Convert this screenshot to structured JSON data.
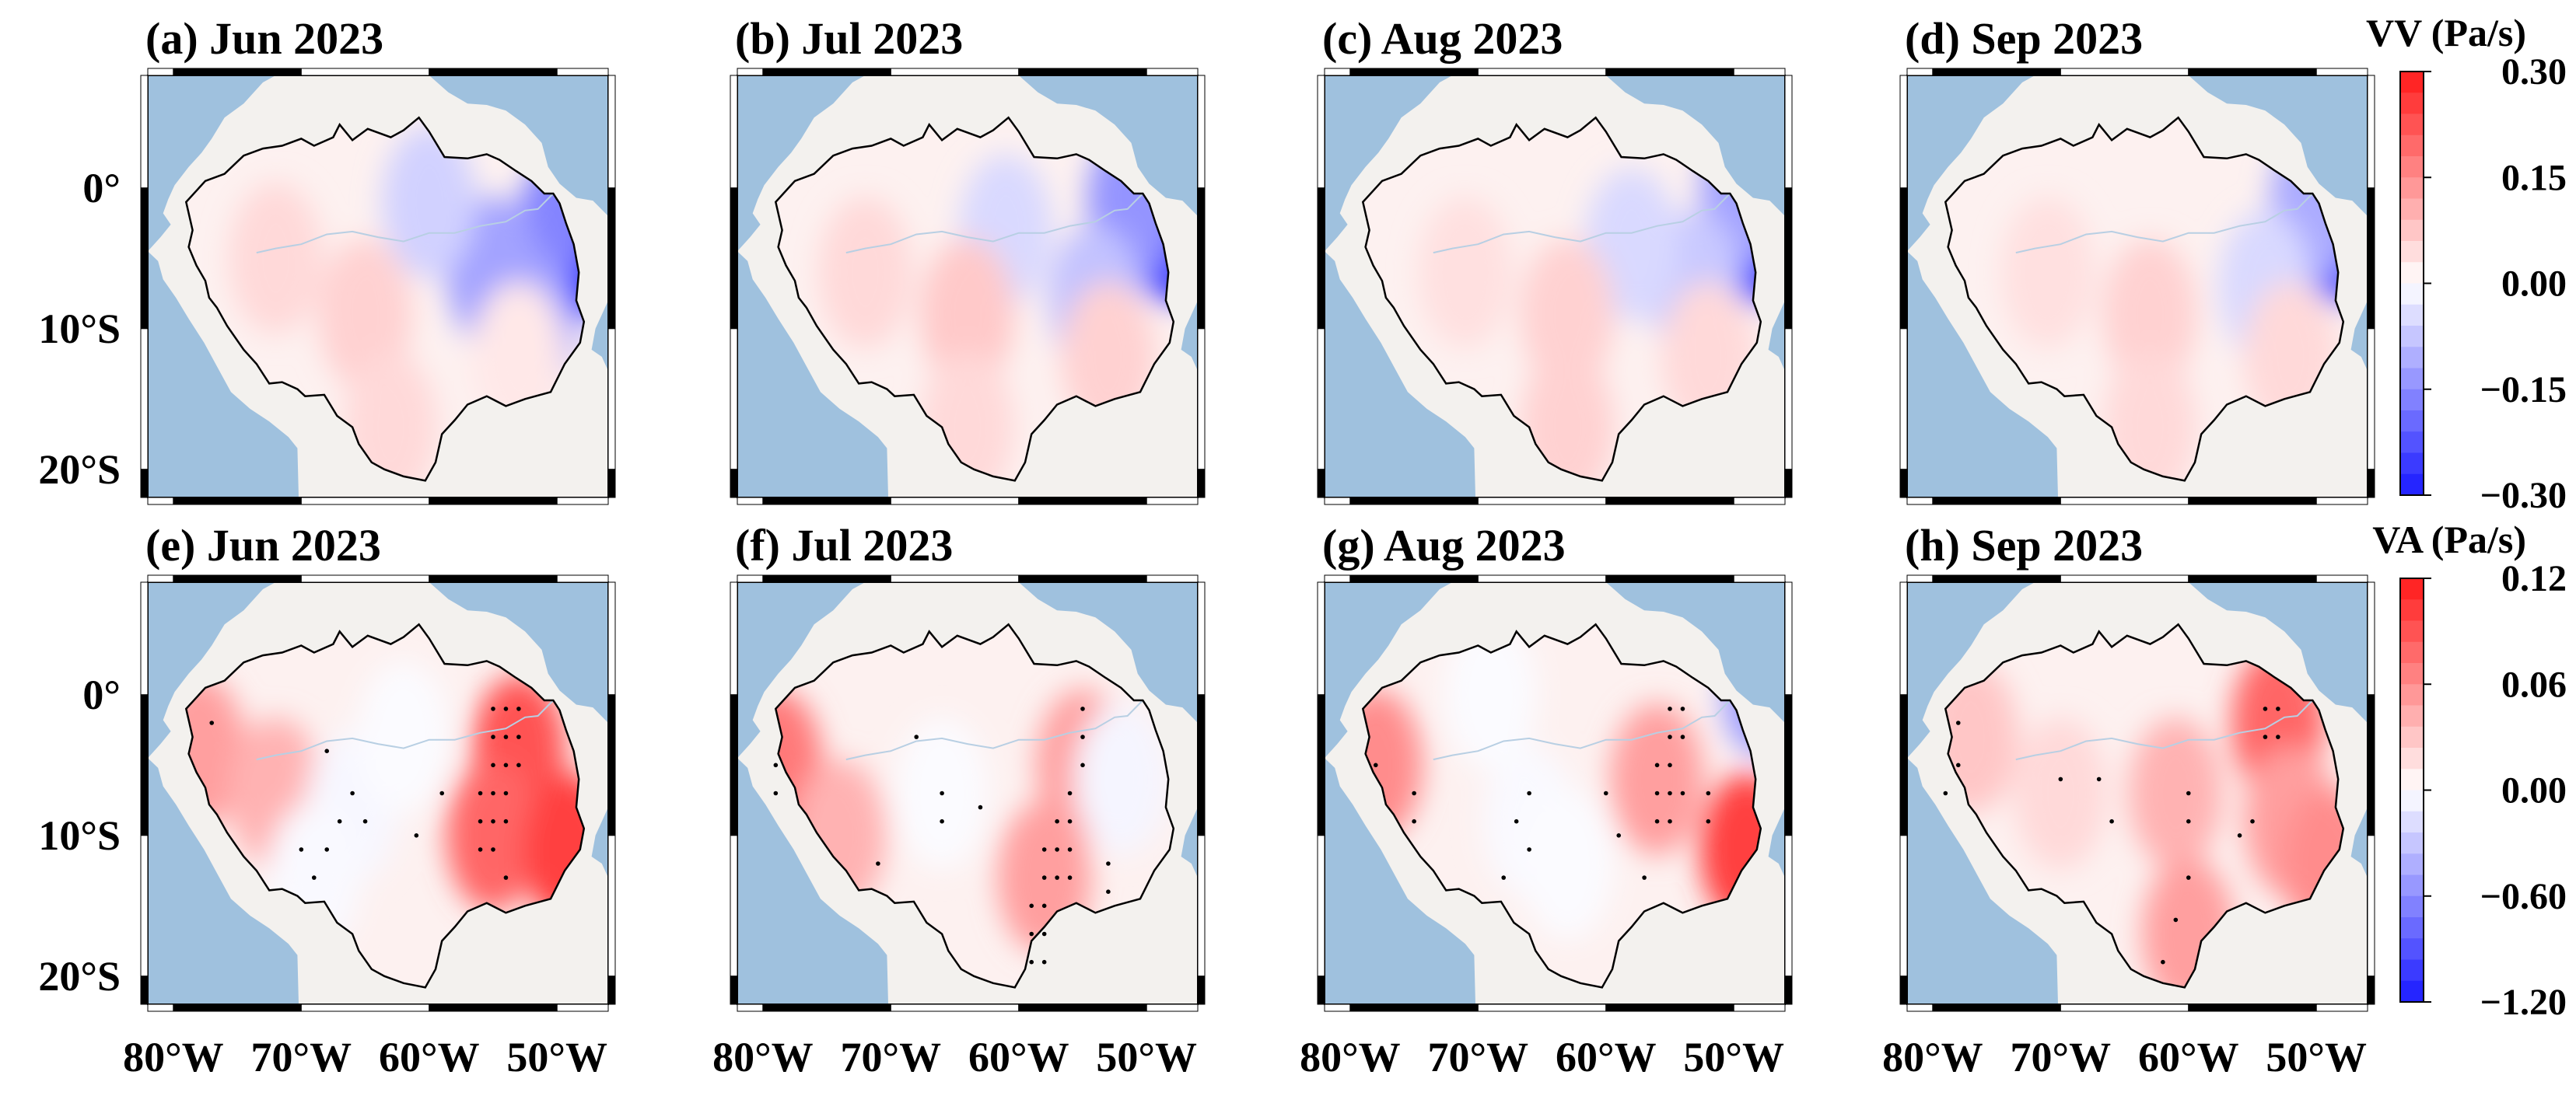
{
  "chart_data": {
    "type": "heatmap",
    "colors": {
      "ocean": "#9fc1de",
      "land": "#f3f1ee",
      "positive": "#ff1a1a",
      "negative": "#1a1aff",
      "neutral": "#ffffff"
    },
    "x_ticks": [
      "80°W",
      "70°W",
      "60°W",
      "50°W"
    ],
    "y_ticks": [
      "0°",
      "10°S",
      "20°S"
    ],
    "lon_range": [
      -82,
      -46
    ],
    "lat_range": [
      8,
      -22
    ],
    "rows": [
      {
        "variable": "VV",
        "colorbar_title": "VV (Pa/s)",
        "colorbar_ticks": [
          "0.30",
          "0.15",
          "0.00",
          "−0.15",
          "−0.30"
        ],
        "panels": [
          {
            "title": "(a) Jun 2023",
            "anomalies": [
              {
                "lon": -48,
                "lat": -5,
                "value": -0.28
              },
              {
                "lon": -50,
                "lat": -2,
                "value": -0.16
              },
              {
                "lon": -55,
                "lat": -6,
                "value": -0.12
              },
              {
                "lon": -52,
                "lat": -10,
                "value": -0.12
              },
              {
                "lon": -60,
                "lat": -1,
                "value": -0.06
              },
              {
                "lon": -72,
                "lat": -5,
                "value": 0.05
              },
              {
                "lon": -65,
                "lat": -9,
                "value": 0.06
              },
              {
                "lon": -63,
                "lat": -17,
                "value": 0.05
              },
              {
                "lon": -53,
                "lat": -12,
                "value": 0.03
              }
            ]
          },
          {
            "title": "(b) Jul 2023",
            "anomalies": [
              {
                "lon": -48,
                "lat": -4,
                "value": -0.24
              },
              {
                "lon": -51,
                "lat": -1,
                "value": -0.14
              },
              {
                "lon": -54,
                "lat": -8,
                "value": -0.08
              },
              {
                "lon": -61,
                "lat": -3,
                "value": -0.05
              },
              {
                "lon": -72,
                "lat": -6,
                "value": 0.05
              },
              {
                "lon": -64,
                "lat": -9,
                "value": 0.07
              },
              {
                "lon": -64,
                "lat": -17,
                "value": 0.05
              },
              {
                "lon": -53,
                "lat": -12,
                "value": 0.06
              }
            ]
          },
          {
            "title": "(c) Aug 2023",
            "anomalies": [
              {
                "lon": -48,
                "lat": -4,
                "value": -0.26
              },
              {
                "lon": -49,
                "lat": 0,
                "value": -0.12
              },
              {
                "lon": -53,
                "lat": -7,
                "value": -0.07
              },
              {
                "lon": -58,
                "lat": -4,
                "value": -0.05
              },
              {
                "lon": -71,
                "lat": -6,
                "value": 0.04
              },
              {
                "lon": -63,
                "lat": -9,
                "value": 0.06
              },
              {
                "lon": -63,
                "lat": -17,
                "value": 0.06
              },
              {
                "lon": -52,
                "lat": -12,
                "value": 0.05
              }
            ]
          },
          {
            "title": "(d) Sep 2023",
            "anomalies": [
              {
                "lon": -48,
                "lat": -4,
                "value": -0.22
              },
              {
                "lon": -50,
                "lat": -1,
                "value": -0.11
              },
              {
                "lon": -54,
                "lat": -7,
                "value": -0.05
              },
              {
                "lon": -71,
                "lat": -6,
                "value": 0.04
              },
              {
                "lon": -63,
                "lat": -9,
                "value": 0.06
              },
              {
                "lon": -63,
                "lat": -17,
                "value": 0.05
              },
              {
                "lon": -52,
                "lat": -12,
                "value": 0.05
              }
            ]
          }
        ]
      },
      {
        "variable": "VA",
        "colorbar_title": "VA (Pa/s)",
        "colorbar_ticks": [
          "0.12",
          "0.06",
          "0.00",
          "−0.60",
          "−1.20"
        ],
        "panels": [
          {
            "title": "(e) Jun 2023",
            "anomalies": [
              {
                "lon": -53,
                "lat": -4,
                "value": 0.09
              },
              {
                "lon": -55,
                "lat": -10,
                "value": 0.08
              },
              {
                "lon": -49,
                "lat": -11,
                "value": 0.1
              },
              {
                "lon": -78,
                "lat": -4,
                "value": 0.05
              },
              {
                "lon": -72,
                "lat": -7,
                "value": 0.04
              },
              {
                "lon": -66,
                "lat": -8,
                "value": -0.04
              },
              {
                "lon": -69,
                "lat": -13,
                "value": -0.03
              },
              {
                "lon": -62,
                "lat": -3,
                "value": -0.02
              }
            ],
            "significance": [
              [
                -55,
                -1
              ],
              [
                -54,
                -1
              ],
              [
                -53,
                -1
              ],
              [
                -55,
                -3
              ],
              [
                -54,
                -3
              ],
              [
                -53,
                -3
              ],
              [
                -55,
                -5
              ],
              [
                -54,
                -5
              ],
              [
                -53,
                -5
              ],
              [
                -56,
                -7
              ],
              [
                -55,
                -7
              ],
              [
                -54,
                -7
              ],
              [
                -56,
                -9
              ],
              [
                -55,
                -9
              ],
              [
                -54,
                -9
              ],
              [
                -56,
                -11
              ],
              [
                -55,
                -11
              ],
              [
                -54,
                -13
              ],
              [
                -66,
                -7
              ],
              [
                -65,
                -9
              ],
              [
                -67,
                -9
              ],
              [
                -68,
                -11
              ],
              [
                -69,
                -13
              ],
              [
                -70,
                -11
              ],
              [
                -61,
                -10
              ],
              [
                -59,
                -7
              ],
              [
                -68,
                -4
              ],
              [
                -77,
                -2
              ]
            ]
          },
          {
            "title": "(f) Jul 2023",
            "anomalies": [
              {
                "lon": -79,
                "lat": -5,
                "value": 0.07
              },
              {
                "lon": -74,
                "lat": -10,
                "value": 0.04
              },
              {
                "lon": -55,
                "lat": -5,
                "value": 0.05
              },
              {
                "lon": -58,
                "lat": -13,
                "value": 0.05
              },
              {
                "lon": -66,
                "lat": -7,
                "value": -0.02
              },
              {
                "lon": -52,
                "lat": -6,
                "value": -0.05
              }
            ],
            "significance": [
              [
                -55,
                -1
              ],
              [
                -55,
                -3
              ],
              [
                -55,
                -5
              ],
              [
                -56,
                -7
              ],
              [
                -57,
                -9
              ],
              [
                -56,
                -9
              ],
              [
                -58,
                -11
              ],
              [
                -57,
                -11
              ],
              [
                -56,
                -11
              ],
              [
                -58,
                -13
              ],
              [
                -57,
                -13
              ],
              [
                -56,
                -13
              ],
              [
                -59,
                -15
              ],
              [
                -58,
                -15
              ],
              [
                -59,
                -17
              ],
              [
                -58,
                -17
              ],
              [
                -59,
                -19
              ],
              [
                -58,
                -19
              ],
              [
                -53,
                -12
              ],
              [
                -53,
                -14
              ],
              [
                -66,
                -7
              ],
              [
                -66,
                -9
              ],
              [
                -71,
                -12
              ],
              [
                -79,
                -5
              ],
              [
                -79,
                -7
              ],
              [
                -68,
                -3
              ],
              [
                -63,
                -8
              ]
            ]
          },
          {
            "title": "(g) Aug 2023",
            "anomalies": [
              {
                "lon": -49,
                "lat": -11,
                "value": 0.1
              },
              {
                "lon": -48,
                "lat": 0,
                "value": -0.5
              },
              {
                "lon": -78,
                "lat": -5,
                "value": 0.06
              },
              {
                "lon": -56,
                "lat": -6,
                "value": 0.05
              },
              {
                "lon": -66,
                "lat": -9,
                "value": -0.03
              },
              {
                "lon": -63,
                "lat": -12,
                "value": -0.02
              },
              {
                "lon": -69,
                "lat": 0,
                "value": -0.02
              }
            ],
            "significance": [
              [
                -55,
                -1
              ],
              [
                -54,
                -1
              ],
              [
                -55,
                -3
              ],
              [
                -54,
                -3
              ],
              [
                -56,
                -5
              ],
              [
                -55,
                -5
              ],
              [
                -56,
                -7
              ],
              [
                -55,
                -7
              ],
              [
                -54,
                -7
              ],
              [
                -56,
                -9
              ],
              [
                -55,
                -9
              ],
              [
                -52,
                -7
              ],
              [
                -52,
                -9
              ],
              [
                -66,
                -7
              ],
              [
                -67,
                -9
              ],
              [
                -66,
                -11
              ],
              [
                -68,
                -13
              ],
              [
                -60,
                -7
              ],
              [
                -59,
                -10
              ],
              [
                -57,
                -13
              ],
              [
                -75,
                -7
              ],
              [
                -75,
                -9
              ],
              [
                -78,
                -5
              ]
            ]
          },
          {
            "title": "(h) Sep 2023",
            "anomalies": [
              {
                "lon": -53,
                "lat": -2,
                "value": 0.08
              },
              {
                "lon": -52,
                "lat": -9,
                "value": 0.05
              },
              {
                "lon": -49,
                "lat": -12,
                "value": 0.06
              },
              {
                "lon": -61,
                "lat": -7,
                "value": 0.04
              },
              {
                "lon": -60,
                "lat": -17,
                "value": 0.05
              },
              {
                "lon": -77,
                "lat": -3,
                "value": 0.03
              },
              {
                "lon": -70,
                "lat": -7,
                "value": 0.02
              }
            ],
            "significance": [
              [
                -54,
                -1
              ],
              [
                -53,
                -1
              ],
              [
                -54,
                -3
              ],
              [
                -53,
                -3
              ],
              [
                -55,
                -9
              ],
              [
                -56,
                -10
              ],
              [
                -60,
                -7
              ],
              [
                -60,
                -9
              ],
              [
                -66,
                -9
              ],
              [
                -67,
                -6
              ],
              [
                -70,
                -6
              ],
              [
                -78,
                -2
              ],
              [
                -78,
                -5
              ],
              [
                -79,
                -7
              ],
              [
                -60,
                -13
              ],
              [
                -61,
                -16
              ],
              [
                -62,
                -19
              ]
            ]
          }
        ]
      }
    ]
  }
}
